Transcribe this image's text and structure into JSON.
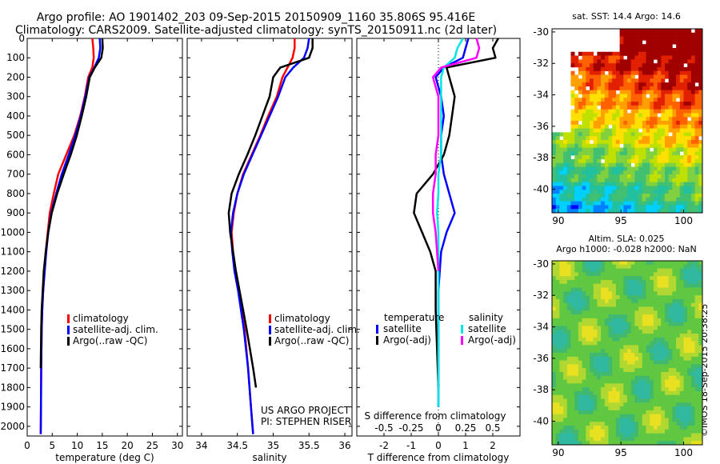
{
  "figure": {
    "title_line1": "Argo profile: AO 1901402_203 09-Sep-2015 20150909_1160 35.806S 95.416E",
    "title_line2": "Climatology: CARS2009. Satellite-adjusted climatology: synTS_20150911.nc (2d later)",
    "footer_stamp": "©IMOS 18-Sep-2015 20:38:25"
  },
  "colors": {
    "climatology": "#ff0000",
    "satellite": "#0000ff",
    "argo": "#000000",
    "satellite_salinity": "#00e5e5",
    "argo_salinity": "#ff00ff"
  },
  "chart_data": [
    {
      "type": "line",
      "panel": "temperature",
      "xlabel": "temperature (deg C)",
      "ylabel": "",
      "xlim": [
        0,
        31
      ],
      "ylim": [
        2050,
        0
      ],
      "y_reversed": true,
      "xticks": [
        "0",
        "5",
        "10",
        "15",
        "20",
        "25",
        "30"
      ],
      "yticks": [
        "0",
        "100",
        "200",
        "300",
        "400",
        "500",
        "600",
        "700",
        "800",
        "900",
        "1000",
        "1100",
        "1200",
        "1300",
        "1400",
        "1500",
        "1600",
        "1700",
        "1800",
        "1900",
        "2000"
      ],
      "legend": [
        "climatology",
        "satellite-adj. clim.",
        "Argo(..raw -QC)"
      ],
      "series": [
        {
          "name": "climatology",
          "color_key": "climatology",
          "x": [
            13.0,
            13.2,
            13.3,
            13.0,
            12.2,
            11.5,
            10.6,
            9.4,
            7.8,
            6.2,
            5.3,
            4.5,
            4.1,
            3.7,
            3.4,
            3.2,
            3.0,
            2.9,
            2.8,
            2.75,
            2.7
          ],
          "y": [
            0,
            50,
            100,
            150,
            200,
            300,
            400,
            500,
            600,
            700,
            800,
            900,
            1000,
            1100,
            1200,
            1300,
            1400,
            1500,
            1700,
            1900,
            2040
          ]
        },
        {
          "name": "satellite-adj. clim.",
          "color_key": "satellite",
          "x": [
            14.5,
            14.6,
            14.3,
            13.4,
            12.4,
            11.6,
            10.7,
            9.6,
            8.3,
            6.9,
            5.8,
            4.8,
            4.2,
            3.8,
            3.5,
            3.2,
            3.0,
            2.9,
            2.8,
            2.75,
            2.7
          ],
          "y": [
            0,
            50,
            100,
            150,
            200,
            300,
            400,
            500,
            600,
            700,
            800,
            900,
            1000,
            1100,
            1200,
            1300,
            1400,
            1500,
            1700,
            1900,
            2040
          ]
        },
        {
          "name": "Argo(..raw -QC)",
          "color_key": "argo",
          "x": [
            15.0,
            15.1,
            14.8,
            13.5,
            12.5,
            11.8,
            10.9,
            9.9,
            8.7,
            7.3,
            6.0,
            4.9,
            4.2,
            3.7,
            3.3,
            3.1,
            2.9,
            2.8,
            2.7
          ],
          "y": [
            0,
            50,
            100,
            150,
            200,
            300,
            400,
            500,
            600,
            700,
            800,
            900,
            1000,
            1100,
            1200,
            1300,
            1400,
            1500,
            1700
          ]
        }
      ]
    },
    {
      "type": "line",
      "panel": "salinity",
      "xlabel": "salinity",
      "ylabel": "",
      "xlim": [
        33.8,
        36.1
      ],
      "ylim": [
        2050,
        0
      ],
      "y_reversed": true,
      "xticks": [
        "34",
        "34.5",
        "35",
        "35.5",
        "36"
      ],
      "legend": [
        "climatology",
        "satellite-adj. clim.",
        "Argo(..raw -QC)"
      ],
      "annotation": [
        "US ARGO PROJECT",
        "PI: STEPHEN RISER"
      ],
      "series": [
        {
          "name": "climatology",
          "color_key": "climatology",
          "x": [
            35.3,
            35.3,
            35.27,
            35.2,
            35.13,
            35.05,
            34.93,
            34.82,
            34.7,
            34.58,
            34.5,
            34.45,
            34.42,
            34.44,
            34.47,
            34.52,
            34.56,
            34.6,
            34.65,
            34.69,
            34.72
          ],
          "y": [
            0,
            50,
            100,
            150,
            200,
            300,
            400,
            500,
            600,
            700,
            800,
            900,
            1000,
            1100,
            1200,
            1300,
            1400,
            1500,
            1700,
            1900,
            2040
          ]
        },
        {
          "name": "satellite-adj. clim.",
          "color_key": "satellite",
          "x": [
            35.5,
            35.48,
            35.43,
            35.28,
            35.17,
            35.07,
            34.95,
            34.83,
            34.71,
            34.59,
            34.5,
            34.44,
            34.41,
            34.43,
            34.46,
            34.51,
            34.55,
            34.59,
            34.65,
            34.69,
            34.72
          ],
          "y": [
            0,
            50,
            100,
            150,
            200,
            300,
            400,
            500,
            600,
            700,
            800,
            900,
            1000,
            1100,
            1200,
            1300,
            1400,
            1500,
            1700,
            1900,
            2040
          ]
        },
        {
          "name": "Argo(..raw -QC)",
          "color_key": "argo",
          "x": [
            35.55,
            35.55,
            35.5,
            35.1,
            35.0,
            34.95,
            34.85,
            34.75,
            34.64,
            34.52,
            34.42,
            34.38,
            34.4,
            34.44,
            34.48,
            34.53,
            34.58,
            34.63,
            34.72,
            34.76
          ],
          "y": [
            0,
            50,
            100,
            150,
            200,
            300,
            400,
            500,
            600,
            700,
            800,
            900,
            1000,
            1100,
            1200,
            1300,
            1400,
            1500,
            1700,
            1800
          ]
        }
      ]
    },
    {
      "type": "line",
      "panel": "difference",
      "xlabel": "T difference from climatology",
      "top_xlabel": "S difference from climatology",
      "xlim": [
        -3,
        3
      ],
      "ylim": [
        2050,
        0
      ],
      "y_reversed": true,
      "xticks": [
        "-2",
        "-1",
        "0",
        "1",
        "2"
      ],
      "top_xticks": [
        "-0.5",
        "-0.25",
        "0",
        "0.25",
        "0.5"
      ],
      "legend_headers": [
        "temperature",
        "salinity"
      ],
      "legend": [
        "satellite",
        "Argo(-adj)",
        "satellite",
        "Argo(-adj)"
      ],
      "series": [
        {
          "name": "satellite",
          "group": "temperature",
          "color_key": "satellite",
          "x": [
            1.1,
            1.0,
            0.9,
            0.2,
            -0.1,
            0.1,
            0.2,
            0.1,
            0.1,
            0.2,
            0.4,
            0.6,
            0.3,
            0.1,
            0.05,
            0.0,
            0.0,
            0.0,
            0.0
          ],
          "y": [
            0,
            50,
            100,
            150,
            200,
            300,
            400,
            500,
            600,
            700,
            800,
            900,
            1000,
            1100,
            1200,
            1300,
            1400,
            1600,
            1900
          ]
        },
        {
          "name": "Argo(-adj)",
          "group": "temperature",
          "color_key": "argo",
          "x": [
            2.2,
            2.0,
            2.1,
            0.3,
            0.4,
            0.6,
            0.5,
            0.4,
            0.2,
            -0.2,
            -0.8,
            -0.9,
            -0.6,
            -0.3,
            -0.1,
            -0.1,
            -0.1,
            -0.05,
            0.0
          ],
          "y": [
            0,
            50,
            100,
            150,
            200,
            300,
            400,
            500,
            600,
            700,
            800,
            900,
            1000,
            1100,
            1200,
            1300,
            1400,
            1600,
            1800
          ]
        },
        {
          "name": "satellite",
          "group": "salinity",
          "color_key": "satellite_salinity",
          "x": [
            0.9,
            0.7,
            0.6,
            0.2,
            0.1,
            0.1,
            0.1,
            0.1,
            0.1,
            0.0,
            0.0,
            -0.05,
            0.0,
            0.0,
            0.0,
            0.0,
            0.0,
            0.0
          ],
          "y": [
            0,
            50,
            100,
            150,
            200,
            300,
            400,
            500,
            600,
            700,
            800,
            900,
            1000,
            1100,
            1200,
            1400,
            1600,
            1900
          ]
        },
        {
          "name": "Argo(-adj)",
          "group": "salinity",
          "color_key": "argo_salinity",
          "x": [
            1.4,
            1.5,
            1.4,
            0.1,
            -0.2,
            0.0,
            0.0,
            0.0,
            -0.1,
            -0.1,
            -0.2,
            -0.2,
            -0.1,
            -0.05,
            0.0
          ],
          "y": [
            0,
            50,
            100,
            150,
            200,
            300,
            400,
            500,
            600,
            700,
            800,
            900,
            1000,
            1100,
            1200
          ]
        }
      ]
    },
    {
      "type": "heatmap",
      "panel": "sst_map",
      "title": "sat. SST: 14.4 Argo: 14.6",
      "xlim": [
        89.5,
        101.5
      ],
      "ylim": [
        -41.5,
        -29.8
      ],
      "xticks": [
        "90",
        "95",
        "100"
      ],
      "yticks": [
        "-30",
        "-32",
        "-34",
        "-36",
        "-38",
        "-40"
      ]
    },
    {
      "type": "heatmap",
      "panel": "sla_map",
      "title": "Altim. SLA: 0.025",
      "subtitle": "Argo h1000: -0.028 h2000: NaN",
      "xlim": [
        89.5,
        101.5
      ],
      "ylim": [
        -41.5,
        -29.8
      ],
      "xticks": [
        "90",
        "95",
        "100"
      ],
      "yticks": [
        "-30",
        "-32",
        "-34",
        "-36",
        "-38",
        "-40"
      ]
    }
  ]
}
